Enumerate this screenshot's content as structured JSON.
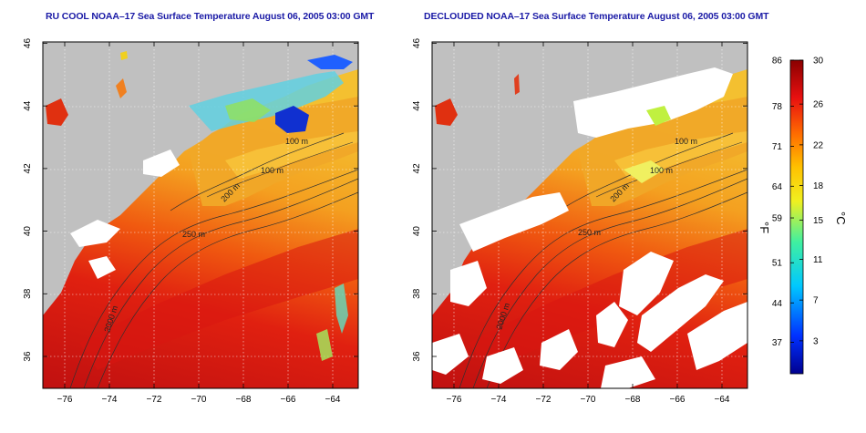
{
  "titles": {
    "left": "RU COOL NOAA–17 Sea Surface Temperature August 06, 2005 03:00 GMT",
    "right": "DECLOUDED NOAA–17 Sea Surface Temperature August 06, 2005 03:00 GMT"
  },
  "axes": {
    "x_ticks": [
      "−76",
      "−74",
      "−72",
      "−70",
      "−68",
      "−66",
      "−64"
    ],
    "y_ticks": [
      "36",
      "38",
      "40",
      "42",
      "44",
      "46"
    ]
  },
  "contours": {
    "label_100": "100 m",
    "label_200": "200 m",
    "label_250": "250 m",
    "label_2000": "2000 m"
  },
  "colorbar": {
    "fahrenheit_unit": "°F",
    "celsius_unit": "°C",
    "fahrenheit_ticks": [
      "86",
      "78",
      "71",
      "64",
      "59",
      "51",
      "44",
      "37"
    ],
    "celsius_ticks": [
      "30",
      "26",
      "22",
      "18",
      "15",
      "11",
      "7",
      "3"
    ]
  },
  "colors": {
    "title": "#1a1aa6",
    "land": "#c0c0c0",
    "cloud_mask": "#ffffff",
    "warm": "#e01818",
    "mid": "#f0a020",
    "cool": "#2040e0"
  }
}
